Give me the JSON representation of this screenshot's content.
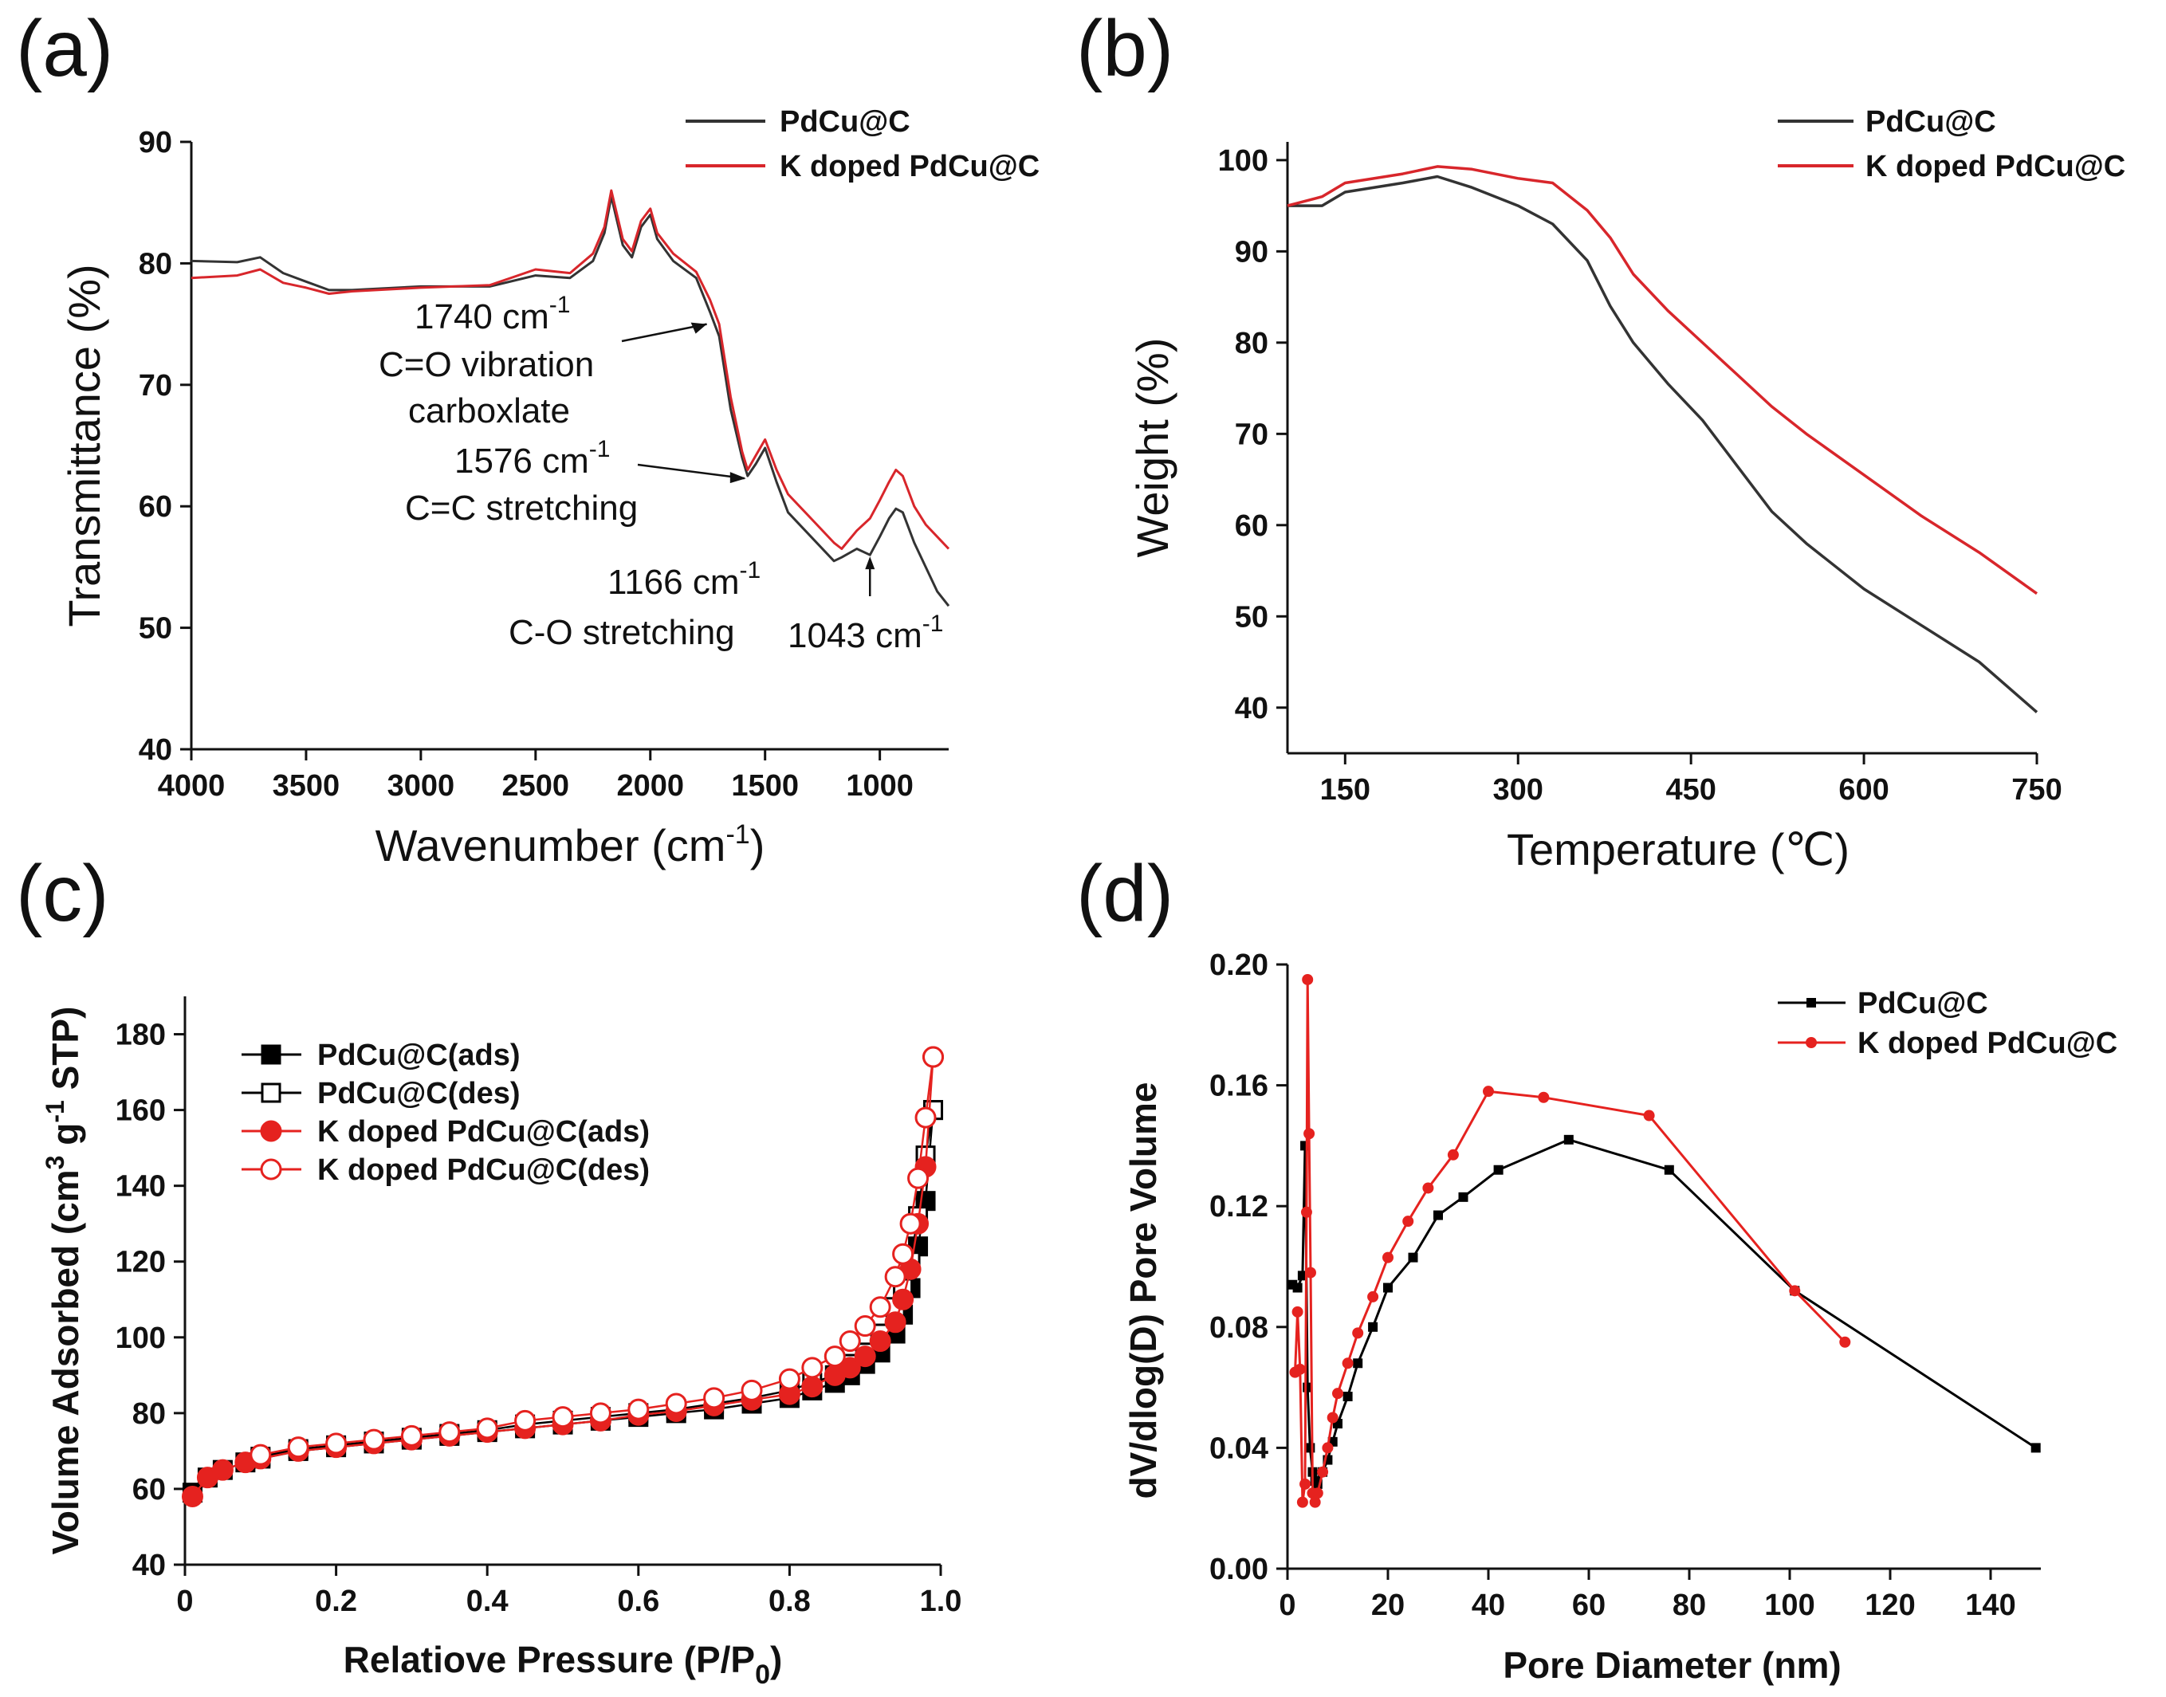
{
  "chart_data": [
    {
      "id": "a",
      "type": "line",
      "panel_label": "(a)",
      "xlabel": "Wavenumber (cm",
      "xlabel_sup": "-1",
      "xlabel_tail": ")",
      "ylabel": "Transmittance (%)",
      "xlim": [
        4000,
        700
      ],
      "ylim": [
        40,
        90
      ],
      "xticks": [
        4000,
        3500,
        3000,
        2500,
        2000,
        1500,
        1000
      ],
      "yticks": [
        40,
        50,
        60,
        70,
        80,
        90
      ],
      "legend": [
        "PdCu@C",
        "K doped PdCu@C"
      ],
      "series": [
        {
          "name": "PdCu@C",
          "color": "#333333",
          "x": [
            4000,
            3800,
            3700,
            3600,
            3500,
            3400,
            3300,
            3000,
            2700,
            2500,
            2350,
            2250,
            2200,
            2170,
            2120,
            2080,
            2040,
            2000,
            1970,
            1900,
            1800,
            1740,
            1700,
            1650,
            1600,
            1576,
            1540,
            1500,
            1450,
            1400,
            1300,
            1200,
            1166,
            1100,
            1043,
            1000,
            960,
            930,
            900,
            850,
            800,
            750,
            700
          ],
          "y": [
            80.2,
            80.1,
            80.5,
            79.2,
            78.5,
            77.8,
            77.8,
            78.1,
            78.1,
            79.0,
            78.8,
            80.2,
            82.5,
            85.5,
            81.5,
            80.5,
            83.0,
            84.0,
            82.0,
            80.2,
            78.8,
            76.0,
            74.0,
            68.0,
            64.0,
            62.5,
            63.5,
            64.8,
            62.0,
            59.5,
            57.5,
            55.5,
            55.8,
            56.5,
            56.0,
            57.5,
            59.0,
            59.8,
            59.5,
            57.0,
            55.0,
            53.0,
            51.8
          ]
        },
        {
          "name": "K doped PdCu@C",
          "color": "#d8262b",
          "x": [
            4000,
            3800,
            3700,
            3600,
            3500,
            3400,
            3300,
            3000,
            2700,
            2500,
            2350,
            2250,
            2200,
            2170,
            2120,
            2080,
            2040,
            2000,
            1970,
            1900,
            1800,
            1740,
            1700,
            1650,
            1600,
            1576,
            1540,
            1500,
            1450,
            1400,
            1300,
            1200,
            1166,
            1100,
            1043,
            1000,
            960,
            930,
            900,
            850,
            800,
            750,
            700
          ],
          "y": [
            78.8,
            79.0,
            79.5,
            78.4,
            78.0,
            77.5,
            77.7,
            78.0,
            78.2,
            79.5,
            79.2,
            80.8,
            83.0,
            86.0,
            82.0,
            81.0,
            83.5,
            84.5,
            82.5,
            80.8,
            79.3,
            77.0,
            75.0,
            69.0,
            64.5,
            63.0,
            64.2,
            65.5,
            63.0,
            61.0,
            59.0,
            57.0,
            56.5,
            58.0,
            59.0,
            60.5,
            62.0,
            63.0,
            62.5,
            60.0,
            58.5,
            57.5,
            56.5
          ]
        }
      ],
      "annotations": [
        {
          "lines": [
            "1740 cm-1",
            "C=O vibration",
            "carboxlate"
          ],
          "point_x": 1740,
          "point_y": 75.0
        },
        {
          "lines": [
            "1576 cm-1",
            "C=C stretching"
          ],
          "point_x": 1576,
          "point_y": 62.5
        },
        {
          "lines": [
            "1166 cm-1",
            "C-O stretching"
          ],
          "point_x": 1166,
          "point_y": 55.8
        },
        {
          "lines": [
            "1043 cm-1"
          ],
          "point_x": 1043,
          "point_y": 56.0
        }
      ]
    },
    {
      "id": "b",
      "type": "line",
      "panel_label": "(b)",
      "xlabel": "Temperature (℃)",
      "ylabel": "Weight (%)",
      "xlim": [
        100,
        750
      ],
      "ylim": [
        35,
        102
      ],
      "xticks": [
        150,
        300,
        450,
        600,
        750
      ],
      "yticks": [
        40,
        50,
        60,
        70,
        80,
        90,
        100
      ],
      "legend": [
        "PdCu@C",
        "K doped PdCu@C"
      ],
      "series": [
        {
          "name": "PdCu@C",
          "color": "#333333",
          "x": [
            100,
            130,
            150,
            200,
            230,
            260,
            300,
            330,
            360,
            380,
            400,
            430,
            460,
            490,
            520,
            550,
            600,
            650,
            700,
            750
          ],
          "y": [
            95,
            95,
            96.5,
            97.5,
            98.2,
            97.0,
            95.0,
            93.0,
            89.0,
            84.0,
            80.0,
            75.5,
            71.5,
            66.5,
            61.5,
            58.0,
            53.0,
            49.0,
            45.0,
            39.5
          ]
        },
        {
          "name": "K doped PdCu@C",
          "color": "#d8262b",
          "x": [
            100,
            130,
            150,
            200,
            230,
            260,
            300,
            330,
            360,
            380,
            400,
            430,
            460,
            490,
            520,
            550,
            600,
            650,
            700,
            750
          ],
          "y": [
            95,
            96,
            97.5,
            98.5,
            99.3,
            99.0,
            98.0,
            97.5,
            94.5,
            91.5,
            87.5,
            83.5,
            80.0,
            76.5,
            73.0,
            70.0,
            65.5,
            61.0,
            57.0,
            52.5
          ]
        }
      ]
    },
    {
      "id": "c",
      "type": "scatter",
      "panel_label": "(c)",
      "xlabel": "Relatiove Pressure (P/P",
      "xlabel_sub": "0",
      "xlabel_tail": ")",
      "ylabel": "Volume Adsorbed (cm",
      "ylabel_sup1": "3",
      "ylabel_mid": " g",
      "ylabel_sup2": "-1",
      "ylabel_tail": " STP)",
      "xlim": [
        0,
        1.0
      ],
      "ylim": [
        40,
        190
      ],
      "xticks": [
        "0",
        "0.2",
        "0.4",
        "0.6",
        "0.8",
        "1.0"
      ],
      "xtick_values": [
        0,
        0.2,
        0.4,
        0.6,
        0.8,
        1.0
      ],
      "yticks": [
        40,
        60,
        80,
        100,
        120,
        140,
        160,
        180
      ],
      "legend": [
        "PdCu@C(ads)",
        "PdCu@C(des)",
        "K doped PdCu@C(ads)",
        "K doped PdCu@C(des)"
      ],
      "series": [
        {
          "name": "PdCu@C(ads)",
          "color": "#000000",
          "marker": "square-filled",
          "x": [
            0.01,
            0.03,
            0.05,
            0.08,
            0.1,
            0.15,
            0.2,
            0.25,
            0.3,
            0.35,
            0.4,
            0.45,
            0.5,
            0.55,
            0.6,
            0.65,
            0.7,
            0.75,
            0.8,
            0.83,
            0.86,
            0.88,
            0.9,
            0.92,
            0.94,
            0.95,
            0.96,
            0.97,
            0.98,
            0.99
          ],
          "y": [
            59,
            63,
            65,
            67,
            68,
            70,
            71,
            72,
            73,
            74,
            75,
            76,
            77,
            78,
            79,
            80,
            81,
            82.5,
            84,
            86,
            88,
            90,
            93,
            96,
            101,
            106,
            113,
            124,
            136,
            160
          ]
        },
        {
          "name": "PdCu@C(des)",
          "color": "#000000",
          "marker": "square-open",
          "x": [
            0.99,
            0.98,
            0.97,
            0.96,
            0.95,
            0.94,
            0.92,
            0.9,
            0.88,
            0.86,
            0.83,
            0.8,
            0.75,
            0.7,
            0.65,
            0.6,
            0.55,
            0.5,
            0.45,
            0.4,
            0.35,
            0.3,
            0.25,
            0.2,
            0.15,
            0.1
          ],
          "y": [
            160,
            148,
            132,
            120,
            113,
            108,
            101,
            96,
            93,
            90,
            88,
            86,
            84,
            82.5,
            81,
            80,
            79,
            78,
            77,
            75.5,
            74.5,
            73.5,
            72.5,
            71.5,
            70.5,
            68.5
          ]
        },
        {
          "name": "K doped PdCu@C(ads)",
          "color": "#e5221f",
          "marker": "circle-filled",
          "x": [
            0.01,
            0.03,
            0.05,
            0.08,
            0.1,
            0.15,
            0.2,
            0.25,
            0.3,
            0.35,
            0.4,
            0.45,
            0.5,
            0.55,
            0.6,
            0.65,
            0.7,
            0.75,
            0.8,
            0.83,
            0.86,
            0.88,
            0.9,
            0.92,
            0.94,
            0.95,
            0.96,
            0.97,
            0.98,
            0.99
          ],
          "y": [
            58,
            63,
            65,
            67,
            68,
            70,
            71,
            72,
            73,
            74,
            75,
            76,
            77,
            78,
            79.5,
            80.5,
            82,
            83.5,
            85,
            87,
            90,
            92,
            95,
            99,
            104,
            110,
            118,
            130,
            145,
            174
          ]
        },
        {
          "name": "K doped PdCu@C(des)",
          "color": "#e5221f",
          "marker": "circle-open",
          "x": [
            0.99,
            0.98,
            0.97,
            0.96,
            0.95,
            0.94,
            0.92,
            0.9,
            0.88,
            0.86,
            0.83,
            0.8,
            0.75,
            0.7,
            0.65,
            0.6,
            0.55,
            0.5,
            0.45,
            0.4,
            0.35,
            0.3,
            0.25,
            0.2,
            0.15,
            0.1
          ],
          "y": [
            174,
            158,
            142,
            130,
            122,
            116,
            108,
            103,
            99,
            95,
            92,
            89,
            86,
            84,
            82.5,
            81,
            80,
            79,
            78,
            76,
            75,
            74,
            73,
            72,
            71,
            69
          ]
        }
      ]
    },
    {
      "id": "d",
      "type": "line",
      "panel_label": "(d)",
      "xlabel": "Pore Diameter (nm)",
      "ylabel": "dV/dlog(D) Pore Volume",
      "xlim": [
        0,
        150
      ],
      "ylim": [
        0,
        0.2
      ],
      "xticks": [
        0,
        20,
        40,
        60,
        80,
        100,
        120,
        140
      ],
      "yticks": [
        "0.00",
        "0.04",
        "0.08",
        "0.12",
        "0.16",
        "0.20"
      ],
      "ytick_values": [
        0,
        0.04,
        0.08,
        0.12,
        0.16,
        0.2
      ],
      "legend": [
        "PdCu@C",
        "K doped PdCu@C"
      ],
      "series": [
        {
          "name": "PdCu@C",
          "color": "#000000",
          "x": [
            1,
            2,
            3,
            3.5,
            4,
            4.5,
            5,
            5.5,
            6,
            7,
            8,
            9,
            10,
            12,
            14,
            17,
            20,
            25,
            30,
            35,
            42,
            56,
            76,
            101,
            149
          ],
          "y": [
            0.094,
            0.093,
            0.097,
            0.14,
            0.06,
            0.04,
            0.032,
            0.029,
            0.028,
            0.032,
            0.036,
            0.042,
            0.048,
            0.057,
            0.068,
            0.08,
            0.093,
            0.103,
            0.117,
            0.123,
            0.132,
            0.142,
            0.132,
            0.092,
            0.04
          ]
        },
        {
          "name": "K doped PdCu@C",
          "color": "#e5221f",
          "x": [
            1.5,
            2,
            2.5,
            3,
            3.5,
            3.8,
            4,
            4.3,
            4.6,
            5,
            5.5,
            6,
            7,
            8,
            9,
            10,
            12,
            14,
            17,
            20,
            24,
            28,
            33,
            40,
            51,
            72,
            101,
            111
          ],
          "y": [
            0.065,
            0.085,
            0.066,
            0.022,
            0.028,
            0.118,
            0.195,
            0.144,
            0.098,
            0.025,
            0.022,
            0.025,
            0.032,
            0.04,
            0.05,
            0.058,
            0.068,
            0.078,
            0.09,
            0.103,
            0.115,
            0.126,
            0.137,
            0.158,
            0.156,
            0.15,
            0.092,
            0.075
          ]
        }
      ]
    }
  ]
}
